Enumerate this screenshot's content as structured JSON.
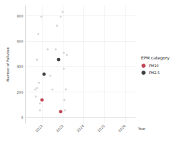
{
  "chart_data": {
    "type": "scatter",
    "x_label": "Year",
    "y_label": "Number of Pollution",
    "legend_title": "EPM category",
    "legend": "right",
    "grid": true,
    "xlim": [
      2021.2,
      2026.5
    ],
    "xticks": [
      2022,
      2023,
      2024,
      2025,
      2026
    ],
    "ylim": [
      -45,
      880
    ],
    "yticks": [
      0,
      200,
      400,
      600,
      800
    ],
    "series": [
      {
        "color": "#cccccc",
        "marker": "circle",
        "x": [
          2021.67,
          2021.76,
          2021.85,
          2021.7,
          2021.9,
          2021.76,
          2021.82,
          2021.97,
          2022.27,
          2022.4,
          2022.5,
          2023.0,
          2022.72,
          2022.9,
          2023.05,
          2023.08,
          2023.1,
          2023.05,
          2022.66,
          2023.15,
          2023.2,
          2021.9
        ],
        "values": [
          219,
          230,
          273,
          164,
          109,
          454,
          656,
          792,
          535,
          328,
          219,
          830,
          721,
          792,
          508,
          137,
          55,
          383,
          535,
          219,
          492,
          55
        ]
      },
      {
        "name": "PM10",
        "color": "#b2182b",
        "marker": "circle",
        "x": [
          2022.0,
          2022.9
        ],
        "values": [
          137,
          45
        ]
      },
      {
        "name": "PM2.5",
        "color": "#111111",
        "marker": "circle",
        "x": [
          2022.1,
          2022.8
        ],
        "values": [
          340,
          455
        ]
      }
    ]
  }
}
